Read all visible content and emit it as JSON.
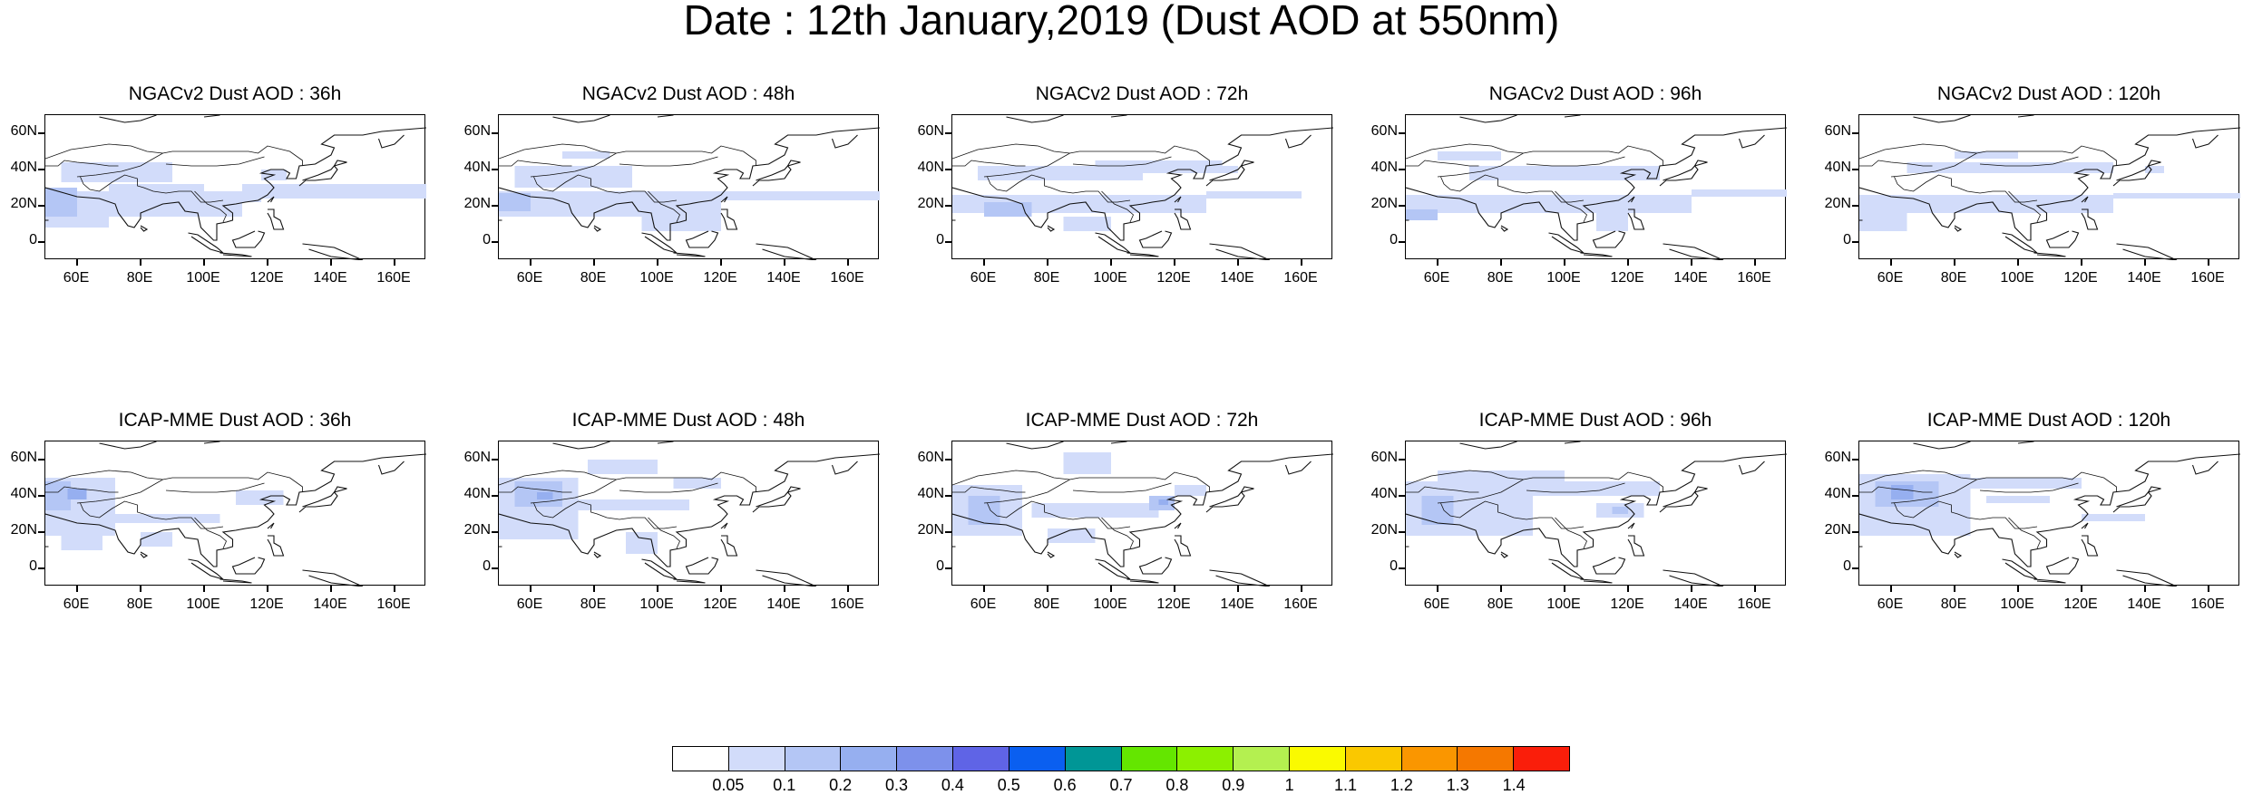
{
  "title": "Date : 12th January,2019 (Dust AOD at 550nm)",
  "panels": [
    {
      "title": "NGACv2 Dust AOD : 36h",
      "model": "NGACv2",
      "lead_hours": 36
    },
    {
      "title": "NGACv2 Dust AOD : 48h",
      "model": "NGACv2",
      "lead_hours": 48
    },
    {
      "title": "NGACv2 Dust AOD : 72h",
      "model": "NGACv2",
      "lead_hours": 72
    },
    {
      "title": "NGACv2 Dust AOD : 96h",
      "model": "NGACv2",
      "lead_hours": 96
    },
    {
      "title": "NGACv2 Dust AOD : 120h",
      "model": "NGACv2",
      "lead_hours": 120
    },
    {
      "title": "ICAP-MME Dust AOD : 36h",
      "model": "ICAP-MME",
      "lead_hours": 36
    },
    {
      "title": "ICAP-MME Dust AOD : 48h",
      "model": "ICAP-MME",
      "lead_hours": 48
    },
    {
      "title": "ICAP-MME Dust AOD : 72h",
      "model": "ICAP-MME",
      "lead_hours": 72
    },
    {
      "title": "ICAP-MME Dust AOD : 96h",
      "model": "ICAP-MME",
      "lead_hours": 96
    },
    {
      "title": "ICAP-MME Dust AOD : 120h",
      "model": "ICAP-MME",
      "lead_hours": 120
    }
  ],
  "axes": {
    "lat_labels": [
      "60N",
      "40N",
      "20N",
      "0"
    ],
    "lon_labels": [
      "60E",
      "80E",
      "100E",
      "120E",
      "140E",
      "160E"
    ],
    "lat_range": [
      -10,
      70
    ],
    "lon_range": [
      50,
      170
    ]
  },
  "colorbar": {
    "colors": [
      "#ffffff",
      "#d2dcfa",
      "#b4c6f5",
      "#96aff0",
      "#7d91eb",
      "#5f64e6",
      "#0a5ff0",
      "#009696",
      "#64e600",
      "#8cf000",
      "#b4f050",
      "#fafa00",
      "#fac800",
      "#fa9600",
      "#f57800",
      "#fa1e0a"
    ],
    "labels": [
      "0.05",
      "0.1",
      "0.2",
      "0.3",
      "0.4",
      "0.5",
      "0.6",
      "0.7",
      "0.8",
      "0.9",
      "1",
      "1.1",
      "1.2",
      "1.3",
      "1.4"
    ]
  }
}
